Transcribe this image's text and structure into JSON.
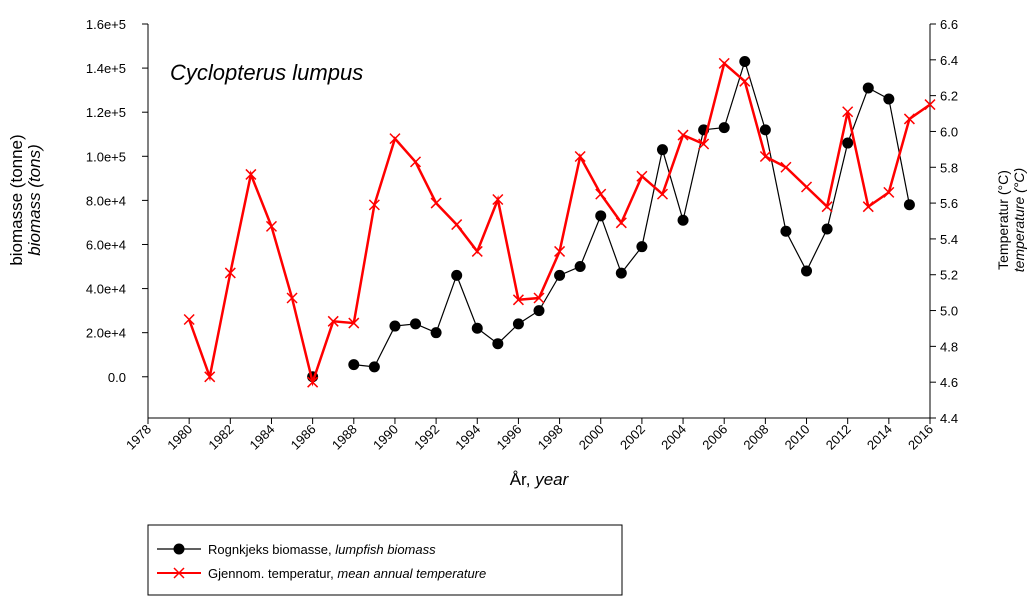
{
  "chart_data": {
    "type": "line",
    "annotation": "Cyclopterus lumpus",
    "x_label": "År,",
    "x_label_en": "year",
    "y_label": "biomasse (tonne)",
    "y_label_en": "biomass (tons)",
    "y2_label": "Temperatur (°C)",
    "y2_label_en": "temperature (°C)",
    "x": [
      1980,
      1981,
      1982,
      1983,
      1984,
      1985,
      1986,
      1987,
      1988,
      1989,
      1990,
      1991,
      1992,
      1993,
      1994,
      1995,
      1996,
      1997,
      1998,
      1999,
      2000,
      2001,
      2002,
      2003,
      2004,
      2005,
      2006,
      2007,
      2008,
      2009,
      2010,
      2011,
      2012,
      2013,
      2014,
      2015,
      2016
    ],
    "xlim": [
      1978,
      2016
    ],
    "xticks": [
      1978,
      1980,
      1982,
      1984,
      1986,
      1988,
      1990,
      1992,
      1994,
      1996,
      1998,
      2000,
      2002,
      2004,
      2006,
      2008,
      2010,
      2012,
      2014,
      2016
    ],
    "ylim": [
      -18700,
      160000
    ],
    "yticks": [
      {
        "value": 0,
        "label": "0.0"
      },
      {
        "value": 20000,
        "label": "2.0e+4"
      },
      {
        "value": 40000,
        "label": "4.0e+4"
      },
      {
        "value": 60000,
        "label": "6.0e+4"
      },
      {
        "value": 80000,
        "label": "8.0e+4"
      },
      {
        "value": 100000,
        "label": "1.0e+5"
      },
      {
        "value": 120000,
        "label": "1.2e+5"
      },
      {
        "value": 140000,
        "label": "1.4e+5"
      },
      {
        "value": 160000,
        "label": "1.6e+5"
      }
    ],
    "y2lim": [
      4.4,
      6.6
    ],
    "y2ticks": [
      4.4,
      4.6,
      4.8,
      {
        "value": 5,
        "label": "5.0"
      },
      5.2,
      5.4,
      5.6,
      5.8,
      {
        "value": 6,
        "label": "6.0"
      },
      6.2,
      6.4,
      6.6
    ],
    "series": [
      {
        "name": "Rognkjeks biomasse,",
        "name_en": "lumpfish biomass",
        "color": "#000000",
        "marker": "circle",
        "values": [
          null,
          null,
          null,
          null,
          null,
          null,
          0,
          null,
          5500,
          4500,
          23000,
          24000,
          20000,
          46000,
          22000,
          15000,
          24000,
          30000,
          46000,
          50000,
          73000,
          47000,
          59000,
          103000,
          71000,
          112000,
          113000,
          143000,
          112000,
          66000,
          48000,
          67000,
          106000,
          131000,
          126000,
          78000,
          null
        ]
      },
      {
        "name": "Gjennom. temperatur,",
        "name_en": "mean annual temperature",
        "color": "#ff0000",
        "marker": "x",
        "axis": "y2",
        "values": [
          4.95,
          4.63,
          5.21,
          5.76,
          5.47,
          5.07,
          4.6,
          4.94,
          4.93,
          5.59,
          5.96,
          5.83,
          5.6,
          5.48,
          5.33,
          5.62,
          5.06,
          5.07,
          5.33,
          5.86,
          5.65,
          5.49,
          5.75,
          5.65,
          5.98,
          5.93,
          6.38,
          6.28,
          5.86,
          5.8,
          5.69,
          5.58,
          6.11,
          5.58,
          5.66,
          6.07,
          6.15
        ]
      }
    ]
  }
}
